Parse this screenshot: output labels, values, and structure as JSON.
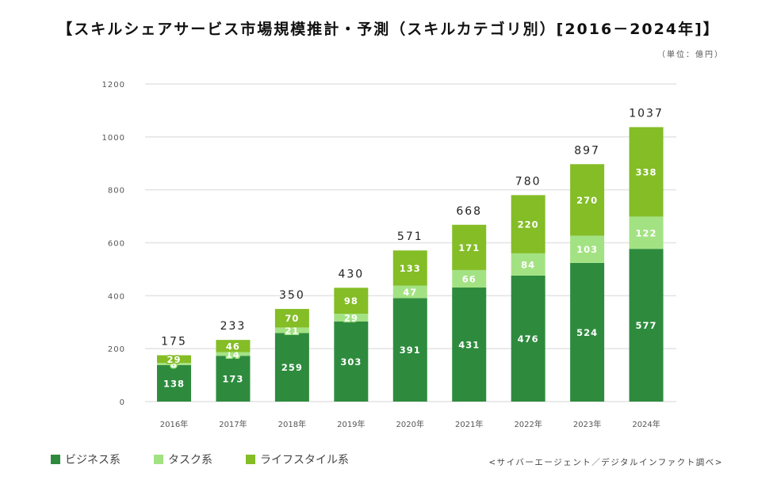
{
  "title": "【スキルシェアサービス市場規模推計・予測（スキルカテゴリ別）[2016－2024年]】",
  "unit": "（単位：億円）",
  "source": "<サイバーエージェント／デジタルインファクト調べ>",
  "colors": {
    "business": "#2e8b3e",
    "task": "#a3e283",
    "lifestyle": "#84bd26"
  },
  "chart_data": {
    "type": "bar",
    "stacked": true,
    "title": "【スキルシェアサービス市場規模推計・予測（スキルカテゴリ別）[2016－2024年]】",
    "xlabel": "",
    "ylabel": "（単位：億円）",
    "ylim": [
      0,
      1200
    ],
    "yticks": [
      0,
      200,
      400,
      600,
      800,
      1000,
      1200
    ],
    "grid": true,
    "legend_position": "bottom-left",
    "categories": [
      "2016年",
      "2017年",
      "2018年",
      "2019年",
      "2020年",
      "2021年",
      "2022年",
      "2023年",
      "2024年"
    ],
    "series": [
      {
        "name": "ビジネス系",
        "key": "business",
        "values": [
          138,
          173,
          259,
          303,
          391,
          431,
          476,
          524,
          577
        ]
      },
      {
        "name": "タスク系",
        "key": "task",
        "values": [
          8,
          14,
          21,
          29,
          47,
          66,
          84,
          103,
          122
        ]
      },
      {
        "name": "ライフスタイル系",
        "key": "lifestyle",
        "values": [
          29,
          46,
          70,
          98,
          133,
          171,
          220,
          270,
          338
        ]
      }
    ],
    "totals": [
      175,
      233,
      350,
      430,
      571,
      668,
      780,
      897,
      1037
    ]
  },
  "legend": [
    {
      "label": "ビジネス系",
      "key": "business"
    },
    {
      "label": "タスク系",
      "key": "task"
    },
    {
      "label": "ライフスタイル系",
      "key": "lifestyle"
    }
  ]
}
